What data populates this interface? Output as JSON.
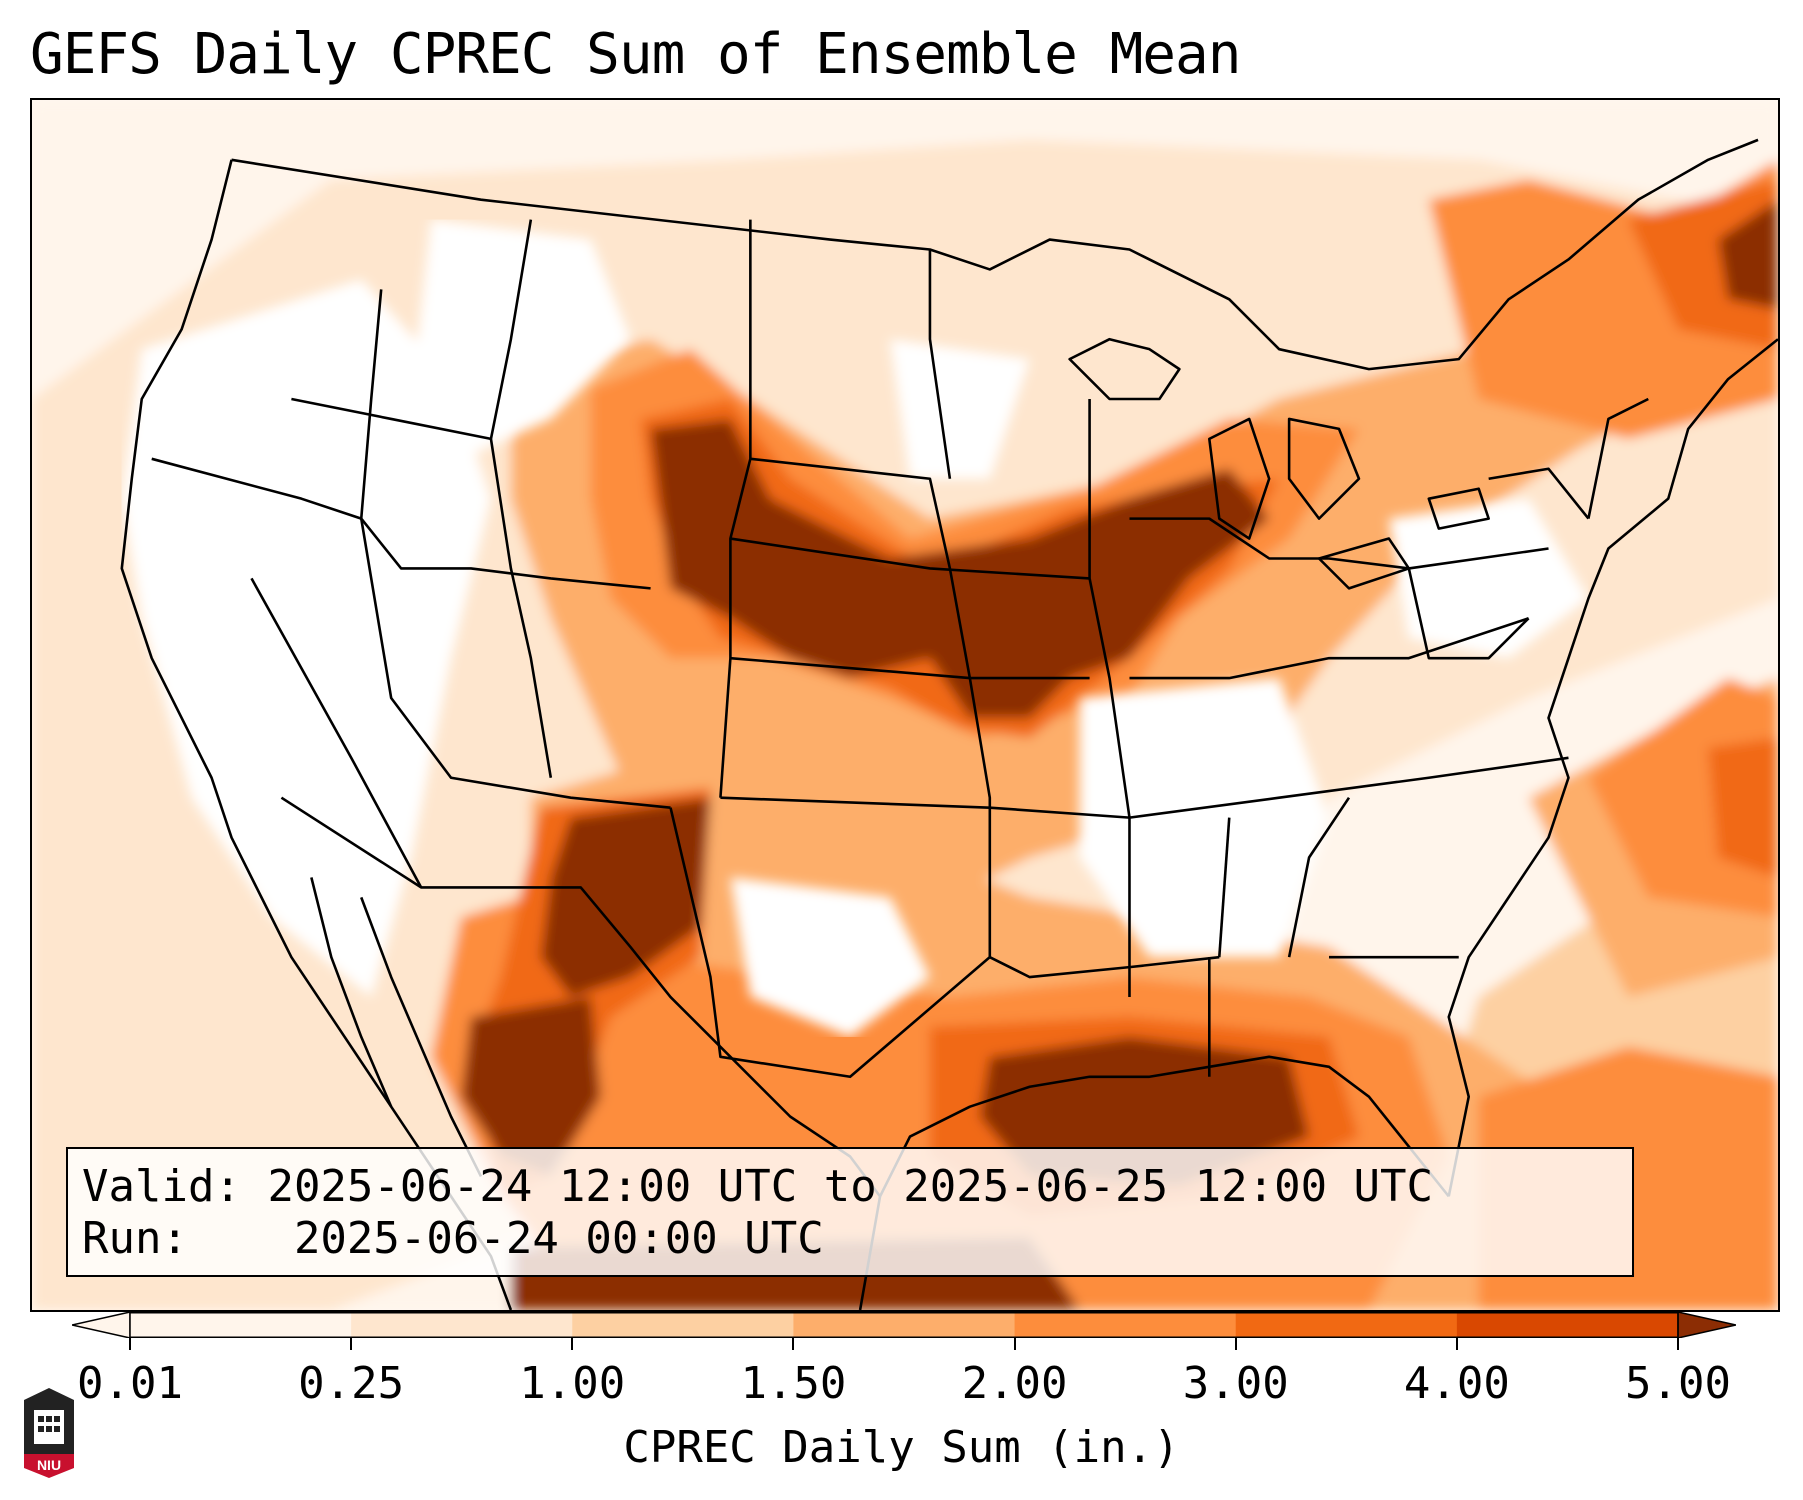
{
  "title": "GEFS Daily CPREC Sum of Ensemble Mean",
  "info": {
    "valid_label": "Valid:",
    "valid_value": "2025-06-24 12:00 UTC to 2025-06-25 12:00 UTC",
    "run_label": "Run:",
    "run_value": "2025-06-24 00:00 UTC"
  },
  "colorbar": {
    "label": "CPREC Daily Sum (in.)",
    "ticks": [
      "0.01",
      "0.25",
      "1.00",
      "1.50",
      "2.00",
      "3.00",
      "4.00",
      "5.00"
    ],
    "colors": [
      "#fff5eb",
      "#fee6ce",
      "#fdd0a2",
      "#fdae6b",
      "#fd8d3c",
      "#f16913",
      "#d94801",
      "#8c2d04"
    ],
    "extend": "both"
  },
  "logo": {
    "text": "NIU",
    "colors": {
      "shield": "#c8102e",
      "body": "#222222"
    }
  }
}
